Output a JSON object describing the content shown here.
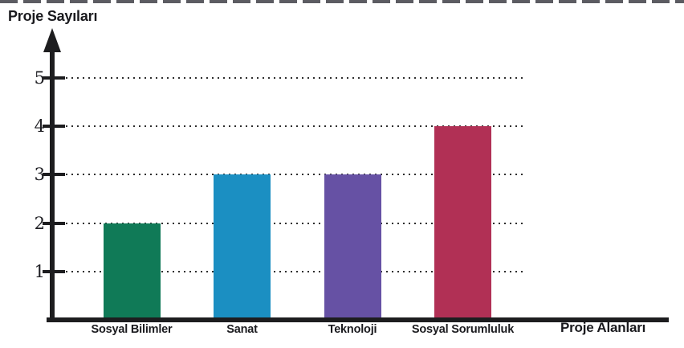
{
  "page": {
    "background_color": "#ffffff",
    "top_border_color": "#3f3f46"
  },
  "chart_data": {
    "type": "bar",
    "title": "",
    "ylabel": "Proje Sayıları",
    "xlabel": "Proje Alanları",
    "categories": [
      "Sosyal Bilimler",
      "Sanat",
      "Teknoloji",
      "Sosyal Sorumluluk"
    ],
    "values": [
      2,
      3,
      3,
      4
    ],
    "bar_colors": [
      "#107a57",
      "#1b8fc2",
      "#6651a4",
      "#b13055"
    ],
    "yticks": [
      1,
      2,
      3,
      4,
      5
    ],
    "ylim": [
      0,
      5.9
    ],
    "grid": "horizontal-dotted",
    "grid_color": "#2e2e2e",
    "axis_color": "#1d1d1f",
    "legend": "none"
  }
}
